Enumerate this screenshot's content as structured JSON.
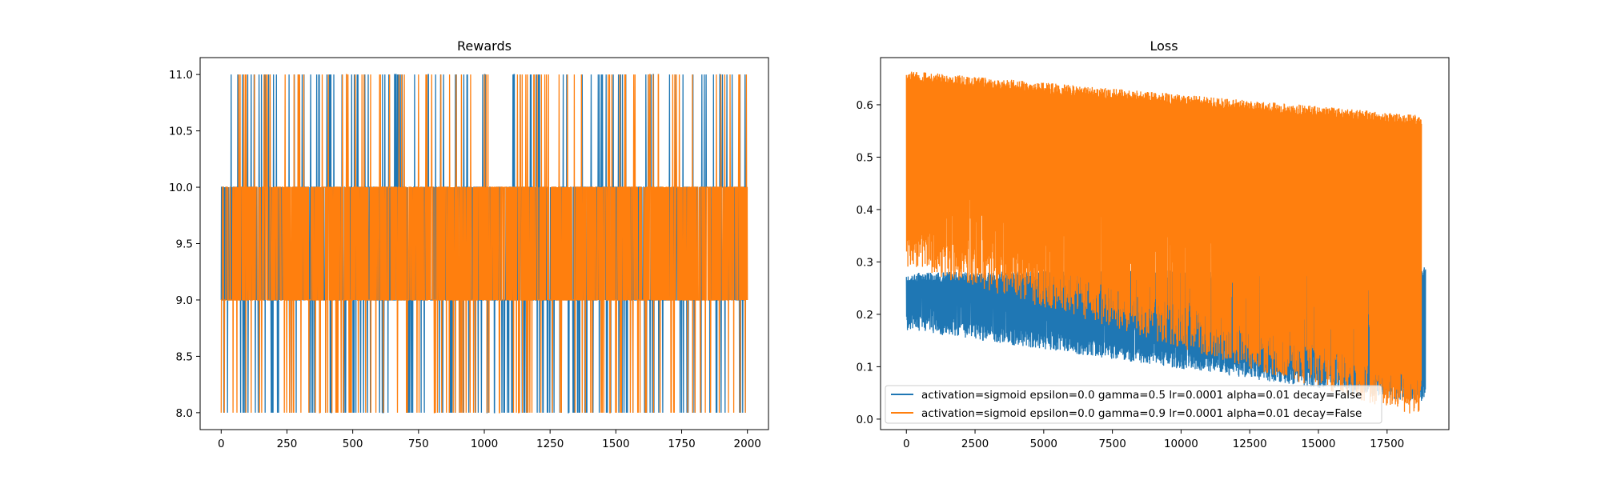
{
  "colors": {
    "series_a": "#1f77b4",
    "series_b": "#ff7f0e"
  },
  "chart_data": [
    {
      "type": "line",
      "title": "Rewards",
      "xlabel": "",
      "ylabel": "",
      "xlim": [
        -80,
        2080
      ],
      "ylim": [
        7.85,
        11.15
      ],
      "xticks": [
        0,
        250,
        500,
        750,
        1000,
        1250,
        1500,
        1750,
        2000
      ],
      "yticks": [
        8.0,
        8.5,
        9.0,
        9.5,
        10.0,
        10.5,
        11.0
      ],
      "xtick_labels": [
        "0",
        "250",
        "500",
        "750",
        "1000",
        "1250",
        "1500",
        "1750",
        "2000"
      ],
      "ytick_labels": [
        "8.0",
        "8.5",
        "9.0",
        "9.5",
        "10.0",
        "10.5",
        "11.0"
      ],
      "legend": "none",
      "series": [
        {
          "values_description": "",
          "x_range": [
            0,
            2000
          ],
          "levels": [
            8,
            9,
            10,
            11
          ],
          "typical": [
            9,
            10
          ],
          "color": "#1f77b4"
        },
        {
          "x_range": [
            0,
            2000
          ],
          "levels": [
            8,
            9,
            10,
            11
          ],
          "typical": [
            9,
            10
          ],
          "color": "#ff7f0e"
        }
      ]
    },
    {
      "type": "line",
      "title": "Loss",
      "xlabel": "",
      "ylabel": "",
      "xlim": [
        -940,
        19750
      ],
      "ylim": [
        -0.02,
        0.69
      ],
      "xticks": [
        0,
        2500,
        5000,
        7500,
        10000,
        12500,
        15000,
        17500
      ],
      "yticks": [
        0.0,
        0.1,
        0.2,
        0.3,
        0.4,
        0.5,
        0.6
      ],
      "xtick_labels": [
        "0",
        "2500",
        "5000",
        "7500",
        "10000",
        "12500",
        "15000",
        "17500"
      ],
      "ytick_labels": [
        "0.0",
        "0.1",
        "0.2",
        "0.3",
        "0.4",
        "0.5",
        "0.6"
      ],
      "legend": "lower-left",
      "series": [
        {
          "name": "activation=sigmoid epsilon=0.0 gamma=0.5 lr=0.0001 alpha=0.01 decay=False",
          "color": "#1f77b4",
          "x_end": 18900,
          "band_top_start": 0.28,
          "band_top_end": 0.29,
          "band_bottom_start": 0.17,
          "band_bottom_end": 0.03
        },
        {
          "name": "activation=sigmoid epsilon=0.0 gamma=0.9 lr=0.0001 alpha=0.01 decay=False",
          "color": "#ff7f0e",
          "x_end": 18750,
          "band_top_start": 0.665,
          "band_top_end": 0.58,
          "band_bottom_start": 0.29,
          "band_bottom_end": 0.0
        }
      ]
    }
  ]
}
